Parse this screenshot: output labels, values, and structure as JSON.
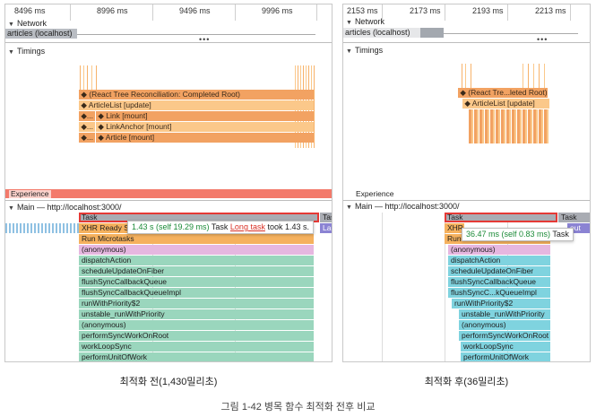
{
  "left": {
    "ruler": [
      "8496 ms",
      "8996 ms",
      "9496 ms",
      "9996 ms"
    ],
    "network_label": "Network",
    "network_request": "articles (localhost)",
    "timings_label": "Timings",
    "timings": [
      "◆ (React Tree Reconciliation: Completed Root)",
      "◆ ArticleList [update]",
      "◆...",
      "◆ Link [mount]",
      "◆...",
      "◆ LinkAnchor [mount]",
      "◆...",
      "◆ Article [mount]"
    ],
    "experience_label": "Experience",
    "main_label": "Main — http://localhost:3000/",
    "flame": {
      "task": "Task",
      "task_right": "Tas",
      "xhr": "XHR Ready St",
      "run_microtasks": "Run Microtasks",
      "anonymous1": "(anonymous)",
      "dispatch": "dispatchAction",
      "schedule": "scheduleUpdateOnFiber",
      "flush_queue": "flushSyncCallbackQueue",
      "flush_impl": "flushSyncCallbackQueueImpl",
      "run_priority": "runWithPriority$2",
      "unstable": "unstable_runWithPriority",
      "anonymous2": "(anonymous)",
      "perform_root": "performSyncWorkOnRoot",
      "work_loop": "workLoopSync",
      "perform_unit": "performUnitOfWork",
      "la": "La"
    },
    "tooltip": {
      "duration": "1.43 s (self 19.29 ms)",
      "task": "Task",
      "long_task": "Long task",
      "took": "took 1.43 s."
    },
    "caption": "최적화 전(1,430밀리초)"
  },
  "right": {
    "ruler": [
      "2153 ms",
      "2173 ms",
      "2193 ms",
      "2213 ms"
    ],
    "network_label": "Network",
    "network_request": "articles (localhost)",
    "timings_label": "Timings",
    "timings": [
      "◆ (React Tre...leted Root)",
      "◆ ArticleList [update]"
    ],
    "experience_label": "Experience",
    "main_label": "Main — http://localhost:3000/",
    "flame": {
      "task": "Task",
      "task_right": "Task",
      "xhr": "XHR",
      "run_microtasks": "Run Microtasks",
      "anonymous1": "(anonymous)",
      "dispatch": "dispatchAction",
      "schedule": "scheduleUpdateOnFiber",
      "flush_queue": "flushSyncCallbackQueue",
      "flush_impl": "flushSyncC...kQueueImpl",
      "run_priority": "runWithPriority$2",
      "unstable": "unstable_runWithPriority",
      "anonymous2": "(anonymous)",
      "perform_root": "performSyncWorkOnRoot",
      "work_loop": "workLoopSync",
      "perform_unit": "performUnitOfWork",
      "timeout": "out"
    },
    "tooltip": {
      "duration": "36.47 ms (self 0.83 ms)",
      "task": "Task"
    },
    "caption": "최적화 후(36밀리초)"
  },
  "figure_caption": "그림 1-42 병목 함수 최적화 전후 비교",
  "colors": {
    "timing_dark": "#f0a060",
    "timing_light": "#fbc88a",
    "experience": "#f37a6b",
    "flame_green": "#9ad6bd",
    "flame_cyan": "#7fd3df",
    "task_gray": "#a9acb3",
    "selection": "#e53935"
  }
}
